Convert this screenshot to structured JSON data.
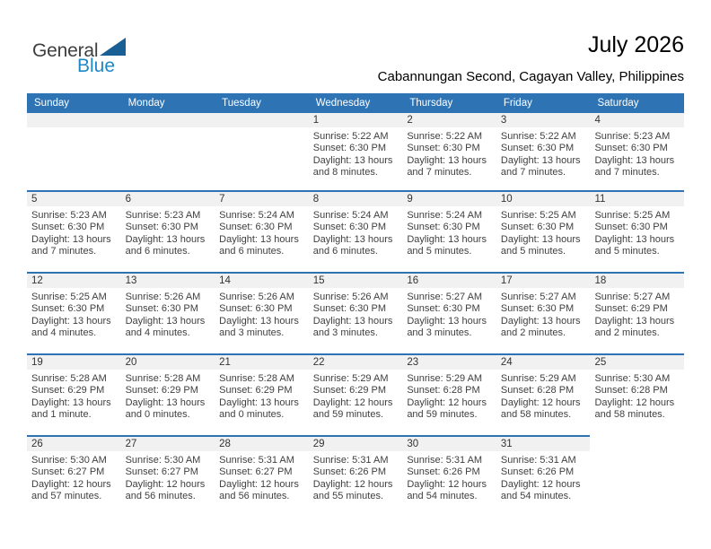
{
  "logo": {
    "part1": "General",
    "part2": "Blue"
  },
  "header": {
    "title": "July 2026",
    "subtitle": "Cabannungan Second, Cagayan Valley, Philippines"
  },
  "colors": {
    "accent_blue": "#2E74B5",
    "band_gray": "#F1F1F1",
    "logo_text_blue": "#1E88C7",
    "logo_triangle_blue": "#1A5F93"
  },
  "calendar": {
    "weekdays": [
      "Sunday",
      "Monday",
      "Tuesday",
      "Wednesday",
      "Thursday",
      "Friday",
      "Saturday"
    ],
    "weeks": [
      [
        null,
        null,
        null,
        {
          "number": "1",
          "lines": [
            "Sunrise: 5:22 AM",
            "Sunset: 6:30 PM",
            "Daylight: 13 hours",
            "and 8 minutes."
          ]
        },
        {
          "number": "2",
          "lines": [
            "Sunrise: 5:22 AM",
            "Sunset: 6:30 PM",
            "Daylight: 13 hours",
            "and 7 minutes."
          ]
        },
        {
          "number": "3",
          "lines": [
            "Sunrise: 5:22 AM",
            "Sunset: 6:30 PM",
            "Daylight: 13 hours",
            "and 7 minutes."
          ]
        },
        {
          "number": "4",
          "lines": [
            "Sunrise: 5:23 AM",
            "Sunset: 6:30 PM",
            "Daylight: 13 hours",
            "and 7 minutes."
          ]
        }
      ],
      [
        {
          "number": "5",
          "lines": [
            "Sunrise: 5:23 AM",
            "Sunset: 6:30 PM",
            "Daylight: 13 hours",
            "and 7 minutes."
          ]
        },
        {
          "number": "6",
          "lines": [
            "Sunrise: 5:23 AM",
            "Sunset: 6:30 PM",
            "Daylight: 13 hours",
            "and 6 minutes."
          ]
        },
        {
          "number": "7",
          "lines": [
            "Sunrise: 5:24 AM",
            "Sunset: 6:30 PM",
            "Daylight: 13 hours",
            "and 6 minutes."
          ]
        },
        {
          "number": "8",
          "lines": [
            "Sunrise: 5:24 AM",
            "Sunset: 6:30 PM",
            "Daylight: 13 hours",
            "and 6 minutes."
          ]
        },
        {
          "number": "9",
          "lines": [
            "Sunrise: 5:24 AM",
            "Sunset: 6:30 PM",
            "Daylight: 13 hours",
            "and 5 minutes."
          ]
        },
        {
          "number": "10",
          "lines": [
            "Sunrise: 5:25 AM",
            "Sunset: 6:30 PM",
            "Daylight: 13 hours",
            "and 5 minutes."
          ]
        },
        {
          "number": "11",
          "lines": [
            "Sunrise: 5:25 AM",
            "Sunset: 6:30 PM",
            "Daylight: 13 hours",
            "and 5 minutes."
          ]
        }
      ],
      [
        {
          "number": "12",
          "lines": [
            "Sunrise: 5:25 AM",
            "Sunset: 6:30 PM",
            "Daylight: 13 hours",
            "and 4 minutes."
          ]
        },
        {
          "number": "13",
          "lines": [
            "Sunrise: 5:26 AM",
            "Sunset: 6:30 PM",
            "Daylight: 13 hours",
            "and 4 minutes."
          ]
        },
        {
          "number": "14",
          "lines": [
            "Sunrise: 5:26 AM",
            "Sunset: 6:30 PM",
            "Daylight: 13 hours",
            "and 3 minutes."
          ]
        },
        {
          "number": "15",
          "lines": [
            "Sunrise: 5:26 AM",
            "Sunset: 6:30 PM",
            "Daylight: 13 hours",
            "and 3 minutes."
          ]
        },
        {
          "number": "16",
          "lines": [
            "Sunrise: 5:27 AM",
            "Sunset: 6:30 PM",
            "Daylight: 13 hours",
            "and 3 minutes."
          ]
        },
        {
          "number": "17",
          "lines": [
            "Sunrise: 5:27 AM",
            "Sunset: 6:30 PM",
            "Daylight: 13 hours",
            "and 2 minutes."
          ]
        },
        {
          "number": "18",
          "lines": [
            "Sunrise: 5:27 AM",
            "Sunset: 6:29 PM",
            "Daylight: 13 hours",
            "and 2 minutes."
          ]
        }
      ],
      [
        {
          "number": "19",
          "lines": [
            "Sunrise: 5:28 AM",
            "Sunset: 6:29 PM",
            "Daylight: 13 hours",
            "and 1 minute."
          ]
        },
        {
          "number": "20",
          "lines": [
            "Sunrise: 5:28 AM",
            "Sunset: 6:29 PM",
            "Daylight: 13 hours",
            "and 0 minutes."
          ]
        },
        {
          "number": "21",
          "lines": [
            "Sunrise: 5:28 AM",
            "Sunset: 6:29 PM",
            "Daylight: 13 hours",
            "and 0 minutes."
          ]
        },
        {
          "number": "22",
          "lines": [
            "Sunrise: 5:29 AM",
            "Sunset: 6:29 PM",
            "Daylight: 12 hours",
            "and 59 minutes."
          ]
        },
        {
          "number": "23",
          "lines": [
            "Sunrise: 5:29 AM",
            "Sunset: 6:28 PM",
            "Daylight: 12 hours",
            "and 59 minutes."
          ]
        },
        {
          "number": "24",
          "lines": [
            "Sunrise: 5:29 AM",
            "Sunset: 6:28 PM",
            "Daylight: 12 hours",
            "and 58 minutes."
          ]
        },
        {
          "number": "25",
          "lines": [
            "Sunrise: 5:30 AM",
            "Sunset: 6:28 PM",
            "Daylight: 12 hours",
            "and 58 minutes."
          ]
        }
      ],
      [
        {
          "number": "26",
          "lines": [
            "Sunrise: 5:30 AM",
            "Sunset: 6:27 PM",
            "Daylight: 12 hours",
            "and 57 minutes."
          ]
        },
        {
          "number": "27",
          "lines": [
            "Sunrise: 5:30 AM",
            "Sunset: 6:27 PM",
            "Daylight: 12 hours",
            "and 56 minutes."
          ]
        },
        {
          "number": "28",
          "lines": [
            "Sunrise: 5:31 AM",
            "Sunset: 6:27 PM",
            "Daylight: 12 hours",
            "and 56 minutes."
          ]
        },
        {
          "number": "29",
          "lines": [
            "Sunrise: 5:31 AM",
            "Sunset: 6:26 PM",
            "Daylight: 12 hours",
            "and 55 minutes."
          ]
        },
        {
          "number": "30",
          "lines": [
            "Sunrise: 5:31 AM",
            "Sunset: 6:26 PM",
            "Daylight: 12 hours",
            "and 54 minutes."
          ]
        },
        {
          "number": "31",
          "lines": [
            "Sunrise: 5:31 AM",
            "Sunset: 6:26 PM",
            "Daylight: 12 hours",
            "and 54 minutes."
          ]
        },
        null
      ]
    ]
  }
}
